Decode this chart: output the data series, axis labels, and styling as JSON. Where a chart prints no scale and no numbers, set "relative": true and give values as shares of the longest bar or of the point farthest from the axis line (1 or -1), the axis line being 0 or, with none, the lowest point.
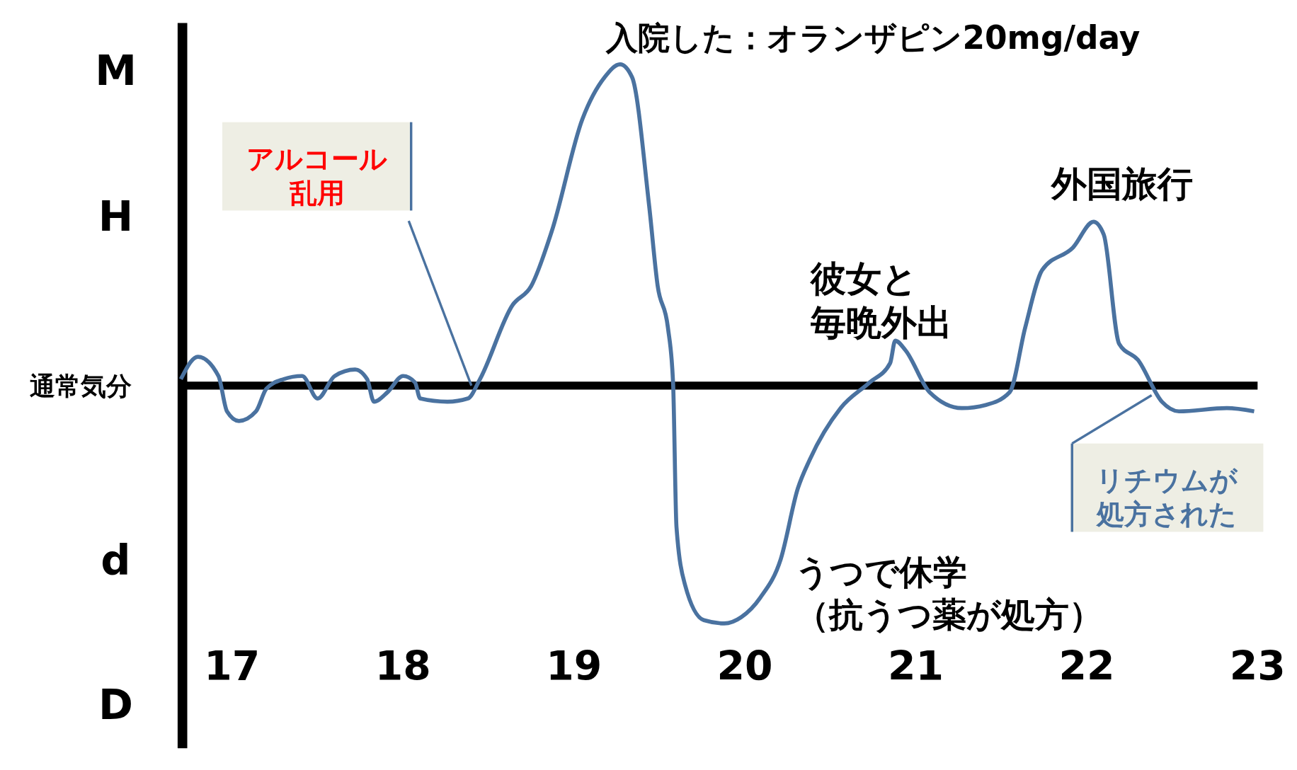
{
  "chart_data": {
    "type": "line",
    "relative": true,
    "x": [
      16.7,
      16.8,
      16.92,
      16.97,
      17.04,
      17.14,
      17.2,
      17.3,
      17.41,
      17.5,
      17.6,
      17.72,
      17.79,
      17.83,
      17.91,
      18.0,
      18.07,
      18.1,
      18.26,
      18.38,
      18.45,
      18.64,
      18.75,
      18.87,
      19.05,
      19.18,
      19.27,
      19.34,
      19.44,
      19.49,
      19.55,
      19.58,
      19.6,
      19.65,
      19.76,
      19.88,
      19.98,
      20.09,
      20.21,
      20.31,
      20.38,
      20.56,
      20.73,
      20.85,
      20.88,
      20.94,
      21.08,
      21.27,
      21.41,
      21.55,
      21.64,
      21.74,
      21.92,
      22.04,
      22.1,
      22.19,
      22.3,
      22.44,
      22.54,
      22.82,
      22.98
    ],
    "series": [
      {
        "color": "#4a72a0",
        "values": [
          0.02,
          0.09,
          0.03,
          -0.08,
          -0.11,
          -0.08,
          -0.01,
          0.02,
          0.03,
          -0.04,
          0.03,
          0.05,
          0.02,
          -0.05,
          -0.02,
          0.03,
          0.01,
          -0.04,
          -0.05,
          -0.04,
          0.02,
          0.25,
          0.31,
          0.48,
          0.83,
          0.96,
          1,
          0.96,
          0.56,
          0.31,
          0.18,
          0.01,
          -0.44,
          -0.62,
          -0.73,
          -0.74,
          -0.72,
          -0.66,
          -0.54,
          -0.32,
          -0.23,
          -0.07,
          0.01,
          0.07,
          0.14,
          0.11,
          -0.02,
          -0.07,
          -0.06,
          -0.02,
          0.18,
          0.36,
          0.43,
          0.51,
          0.47,
          0.13,
          0.08,
          -0.05,
          -0.08,
          -0.07,
          -0.08
        ]
      }
    ],
    "xlim": [
      16.7,
      23.0
    ],
    "xticks": [
      17,
      18,
      19,
      20,
      21,
      22,
      23
    ],
    "annotations": [
      {
        "text": "入院した：オランザピン20mg/day",
        "x": 19.27,
        "y": 1
      },
      {
        "text": "アルコール乱用",
        "x": 18.4,
        "y": 0
      },
      {
        "text": "彼女と毎晩外出",
        "x": 20.88,
        "y": 0.14
      },
      {
        "text": "外国旅行",
        "x": 22.04,
        "y": 0.51
      },
      {
        "text": "うつで休学（抗うつ薬が処方）",
        "x": 19.9,
        "y": -0.74
      },
      {
        "text": "リチウムが処方された",
        "x": 22.38,
        "y": -0.03
      },
      "M",
      "H",
      "通常気分",
      "d",
      "D"
    ]
  }
}
